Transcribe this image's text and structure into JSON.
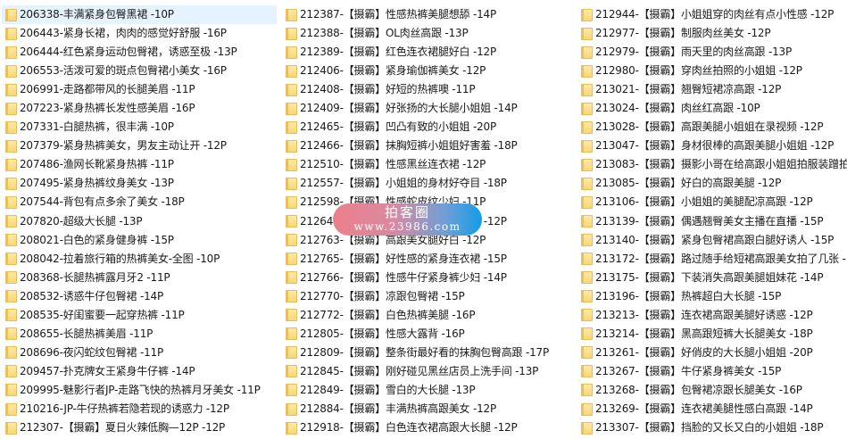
{
  "columns": [
    [
      "206338-丰满紧身包臀黑裙 -10P",
      "206443-紧身长裙，肉肉的感觉好舒服 -16P",
      "206444-红色紧身运动包臀裙，诱惑至极 -13P",
      "206553-活泼可爱的斑点包臀裙小美女 -16P",
      "206991-走路都带风的长腿美眉 -11P",
      "207223-紧身热裤长发性感美眉 -16P",
      "207331-白腿热裤，很丰满 -10P",
      "207379-紧身热裤美女，男友主动让开 -12P",
      "207486-渔网长靴紧身热裤 -11P",
      "207495-紧身热裤纹身美女 -13P",
      "207544-背包有点多余了美女 -18P",
      "207820-超级大长腿 -13P",
      "208021-白色的紧身健身裤 -15P",
      "208042-拉着旅行箱的热裤美女-全图 -10P",
      "208368-长腿热裤露月牙2 -11P",
      "208532-诱惑牛仔包臀裙 -14P",
      "208535-好闺蜜要一起穿热裤 -11P",
      "208655-长腿热裤美眉 -11P",
      "208696-夜闪蛇纹包臀裙 -11P",
      "209457-扑克牌女王紧身牛仔裤 -14P",
      "209995-魅影行者JP-走路飞快的热裤月牙美女 -11P",
      "210216-JP-牛仔热裤若隐若现的诱惑力 -12P",
      "212307-【摄霸】夏日火辣低胸—12P -12P"
    ],
    [
      "212387-【摄霸】性感热裤美腿想舔 -14P",
      "212388-【摄霸】OL肉丝高跟 -13P",
      "212389-【摄霸】红色连衣裙腿好白 -12P",
      "212406-【摄霸】紧身瑜伽裤美女 -12P",
      "212408-【摄霸】好短的热裤噢 -11P",
      "212409-【摄霸】好张扬的大长腿小姐姐 -14P",
      "212465-【摄霸】凹凸有致的小姐姐 -20P",
      "212466-【摄霸】抹胸短裤小姐姐好害羞 -18P",
      "212510-【摄霸】性感黑丝连衣裙 -12P",
      "212557-【摄霸】小姐姐的身材好夺目 -18P",
      "212598-【摄霸】性感蛇皮纹少妇 -11P",
      "212640-【摄霸】美腿配上高跟鞋好看 -12P",
      "212763-【摄霸】高跟美女腿好白 -12P",
      "212765-【摄霸】好性感的紧身连衣裙 -15P",
      "212766-【摄霸】性感牛仔紧身裤少妇 -14P",
      "212770-【摄霸】凉跟包臀裙 -15P",
      "212772-【摄霸】白色热裤美腿 -16P",
      "212805-【摄霸】性感大露背 -16P",
      "212809-【摄霸】整条街最好看的抹胸包臀高跟 -17P",
      "212845-【摄霸】刚好碰见黑丝店员上洗手间 -13P",
      "212849-【摄霸】雪白的大长腿 -13P",
      "212884-【摄霸】丰满热裤高跟美女 -12P",
      "212918-【摄霸】白色连衣裙高跟大长腿 -12P"
    ],
    [
      "212944-【摄霸】小姐姐穿的肉丝有点小性感 -12P",
      "212977-【摄霸】制服肉丝美女 -12P",
      "212979-【摄霸】雨天里的肉丝高跟 -13P",
      "212980-【摄霸】穿肉丝拍照的小姐姐 -12P",
      "213021-【摄霸】翘臀短裙凉高跟 -12P",
      "213024-【摄霸】肉丝红高跟 -10P",
      "213028-【摄霸】高跟美腿小姐姐在录视频 -12P",
      "213047-【摄霸】身材很棒的高跟美腿小姐姐 -12P",
      "213083-【摄霸】摄影小哥在给高跟小姐姐拍服装蹭拍",
      "213085-【摄霸】好白的高跟美腿 -12P",
      "213106-【摄霸】小姐姐的美腿配凉高跟 -12P",
      "213139-【摄霸】偶遇翘臀美女主播在直播 -15P",
      "213140-【摄霸】紧身包臀裙高跟白腿好诱人 -15P",
      "213172-【摄霸】路过随手给短裙高跟美女拍了几张 -",
      "213175-【摄霸】下装消失高跟美腿姐妹花 -14P",
      "213196-【摄霸】热裤超白大长腿 -15P",
      "213213-【摄霸】连衣裙高跟美腿好诱惑 -12P",
      "213214-【摄霸】黑高跟短裤大长腿美女 -18P",
      "213261-【摄霸】好俏皮的大长腿小姐姐 -20P",
      "213267-【摄霸】牛仔紧身裤美女 -15P",
      "213268-【摄霸】包臀裙凉跟长腿美女 -16P",
      "213269-【摄霸】连衣裙美腿性感白高跟 -14P",
      "213307-【摄霸】挡脸的又长又白的小姐姐 -18P"
    ]
  ],
  "selected_item": "206338-丰满紧身包臀黑裙 -10P",
  "watermark": {
    "title": "拍客圈",
    "url": "www.23986.com"
  },
  "icons": {
    "item": "folder-icon"
  },
  "colors": {
    "selection": "#e5f3ff",
    "folder": "#f8d775",
    "watermark_start": "#ec7f8c",
    "watermark_end": "#149ce8"
  }
}
